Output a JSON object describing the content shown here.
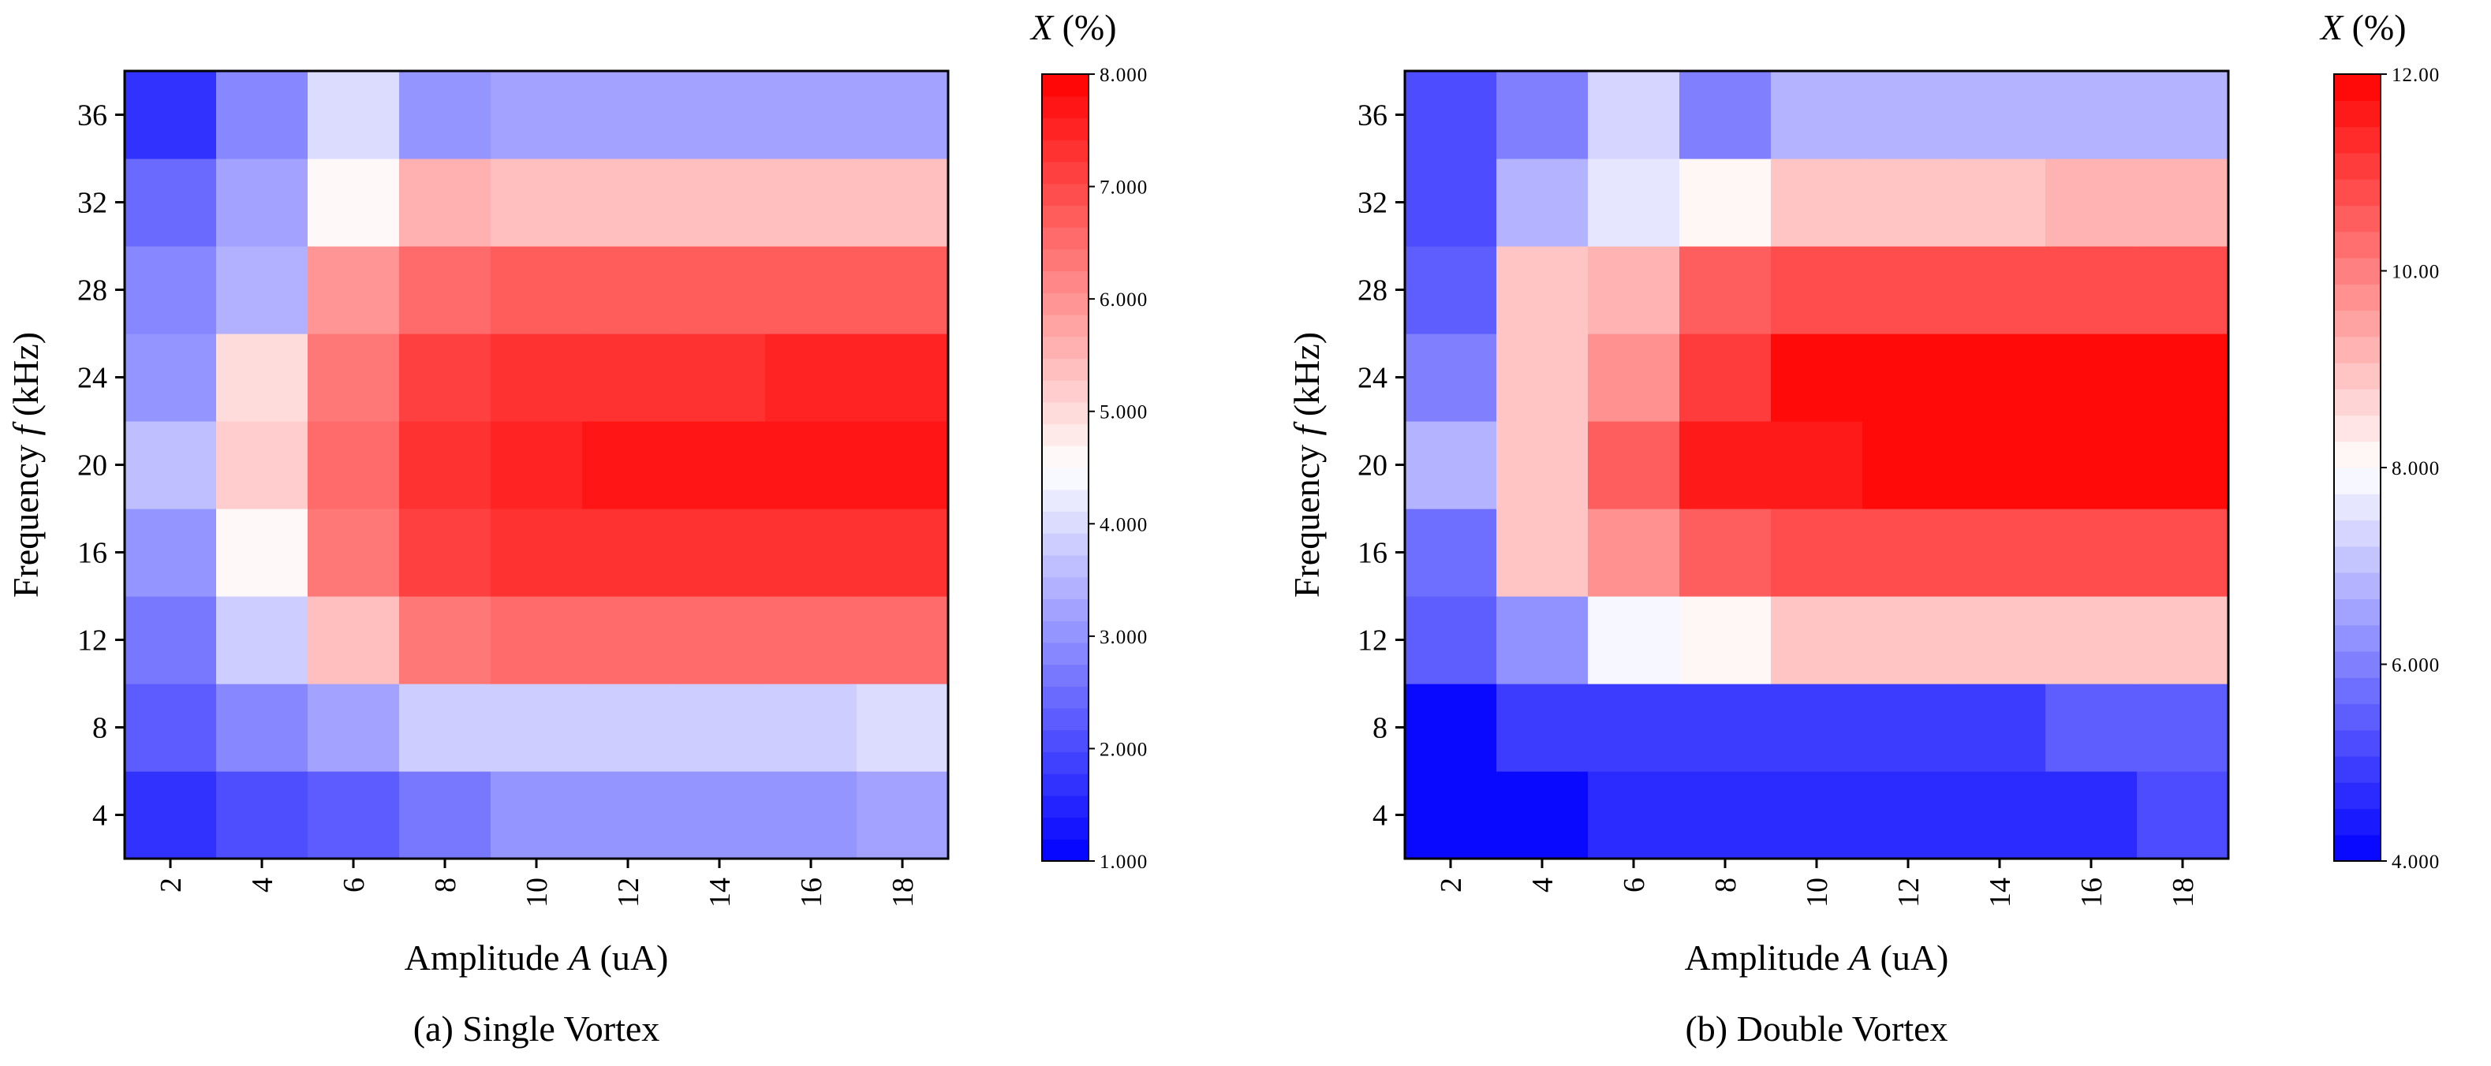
{
  "chart_data": [
    {
      "type": "heatmap",
      "caption": "(a) Single Vortex",
      "xlabel_prefix": "Amplitude ",
      "xlabel_var": "A",
      "xlabel_suffix": " (uA)",
      "ylabel_prefix": "Frequency ",
      "ylabel_var": "f",
      "ylabel_suffix": " (kHz)",
      "x": [
        2,
        4,
        6,
        8,
        10,
        12,
        14,
        16,
        18
      ],
      "y": [
        4,
        8,
        12,
        16,
        20,
        24,
        28,
        32,
        36
      ],
      "values": [
        [
          1.7,
          2.0,
          2.2,
          2.7,
          3.0,
          3.0,
          3.0,
          3.0,
          3.2
        ],
        [
          2.2,
          2.9,
          3.3,
          3.9,
          3.9,
          3.9,
          3.9,
          3.9,
          4.0
        ],
        [
          2.7,
          3.9,
          5.4,
          6.3,
          6.6,
          6.6,
          6.6,
          6.6,
          6.6
        ],
        [
          3.1,
          4.6,
          6.4,
          7.1,
          7.3,
          7.3,
          7.3,
          7.4,
          7.4
        ],
        [
          3.7,
          5.2,
          6.6,
          7.3,
          7.5,
          7.7,
          7.7,
          7.8,
          7.8
        ],
        [
          3.1,
          4.9,
          6.4,
          7.2,
          7.4,
          7.4,
          7.4,
          7.6,
          7.6
        ],
        [
          2.9,
          3.4,
          5.9,
          6.5,
          6.8,
          6.8,
          6.8,
          6.8,
          6.8
        ],
        [
          2.5,
          3.2,
          4.6,
          5.5,
          5.4,
          5.4,
          5.4,
          5.4,
          5.4
        ],
        [
          1.7,
          2.9,
          4.1,
          3.0,
          3.3,
          3.3,
          3.3,
          3.3,
          3.3
        ]
      ],
      "colorbar": {
        "title_var": "X",
        "title_unit": " (%)",
        "min": 1.0,
        "max": 8.0,
        "levels": 36,
        "ticks": [
          "1.000",
          "2.000",
          "3.000",
          "4.000",
          "5.000",
          "6.000",
          "7.000",
          "8.000"
        ]
      },
      "colors": {
        "low": "#0000ff",
        "mid": "#ffffff",
        "high": "#ff0000"
      }
    },
    {
      "type": "heatmap",
      "caption": "(b) Double Vortex",
      "xlabel_prefix": "Amplitude ",
      "xlabel_var": "A",
      "xlabel_suffix": " (uA)",
      "ylabel_prefix": "Frequency ",
      "ylabel_var": "f",
      "ylabel_suffix": " (kHz)",
      "x": [
        2,
        4,
        6,
        8,
        10,
        12,
        14,
        16,
        18
      ],
      "y": [
        4,
        8,
        12,
        16,
        20,
        24,
        28,
        32,
        36
      ],
      "values": [
        [
          4.0,
          4.1,
          4.6,
          4.6,
          4.6,
          4.6,
          4.6,
          4.6,
          5.1
        ],
        [
          4.2,
          4.9,
          5.0,
          5.0,
          5.0,
          5.0,
          5.0,
          5.6,
          5.6
        ],
        [
          5.4,
          6.2,
          7.9,
          8.1,
          8.9,
          8.9,
          8.9,
          8.9,
          8.9
        ],
        [
          5.7,
          8.8,
          9.6,
          10.5,
          10.9,
          10.9,
          10.9,
          10.9,
          10.9
        ],
        [
          6.9,
          8.9,
          10.6,
          11.5,
          11.6,
          11.9,
          11.9,
          11.9,
          11.9
        ],
        [
          6.1,
          8.9,
          9.6,
          11.0,
          12.0,
          12.0,
          12.0,
          12.0,
          12.0
        ],
        [
          5.6,
          8.8,
          9.2,
          10.5,
          10.7,
          10.7,
          10.7,
          10.7,
          10.7
        ],
        [
          5.3,
          6.9,
          7.5,
          8.1,
          8.9,
          8.9,
          8.9,
          9.3,
          9.3
        ],
        [
          5.1,
          6.1,
          7.2,
          6.0,
          6.9,
          6.9,
          6.9,
          6.9,
          6.9
        ]
      ],
      "colorbar": {
        "title_var": "X",
        "title_unit": " (%)",
        "min": 4.0,
        "max": 12.0,
        "levels": 30,
        "ticks": [
          "4.000",
          "6.000",
          "8.000",
          "10.00",
          "12.00"
        ]
      },
      "colors": {
        "low": "#0000ff",
        "mid": "#ffffff",
        "high": "#ff0000"
      }
    }
  ]
}
